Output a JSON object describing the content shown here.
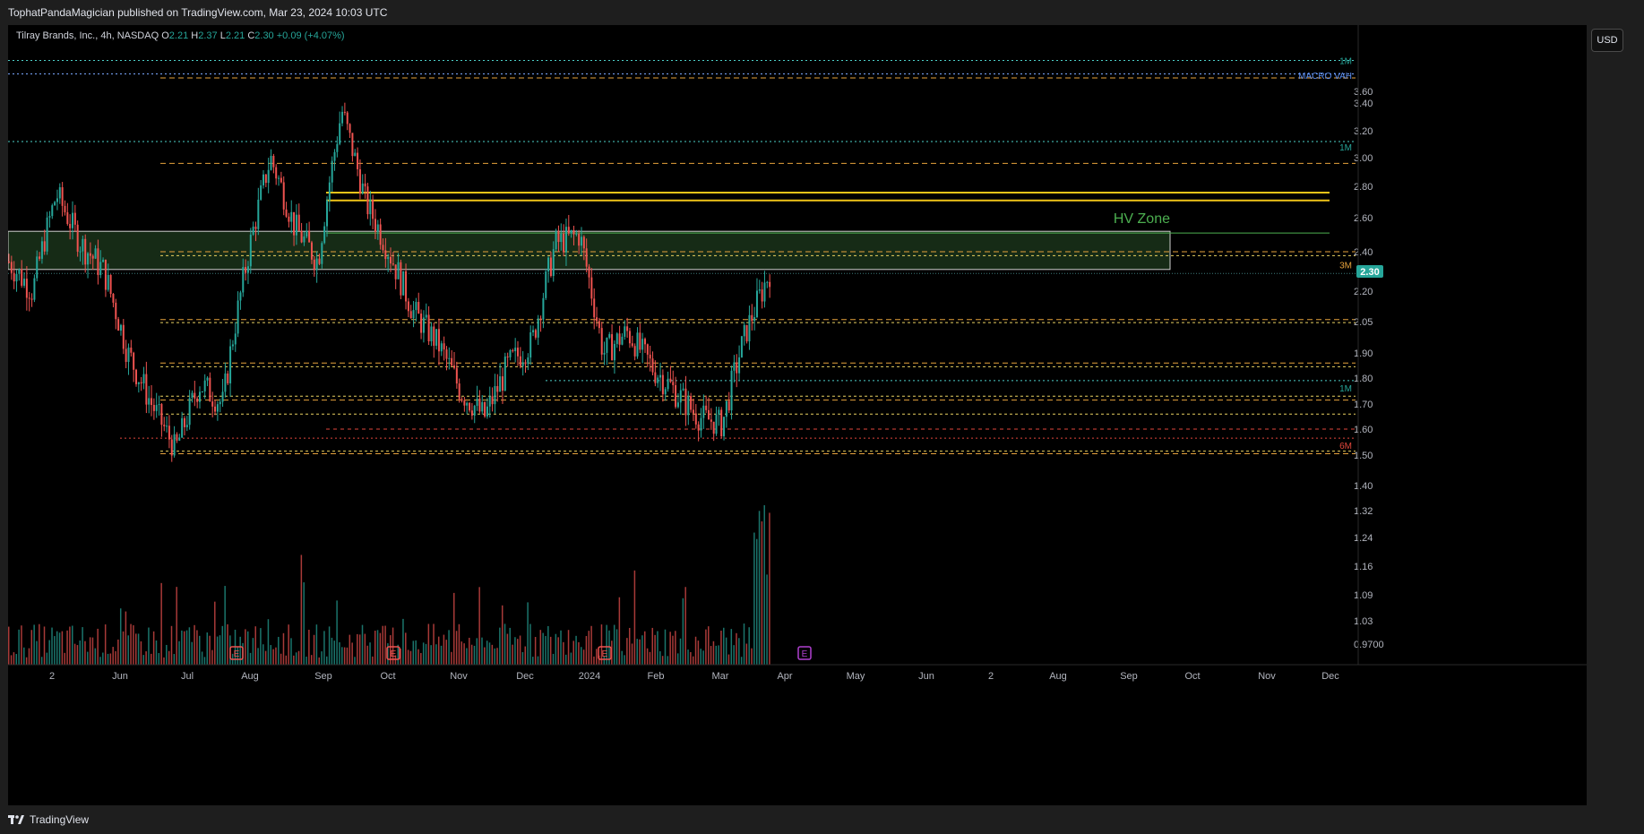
{
  "header": {
    "published_text": "TophatPandaMagician published on TradingView.com, Mar 23, 2024 10:03 UTC"
  },
  "legend": {
    "symbol_text": "Tilray Brands, Inc., 4h, NASDAQ",
    "o_label": "O",
    "o_value": "2.21",
    "h_label": "H",
    "h_value": "2.37",
    "l_label": "L",
    "l_value": "2.21",
    "c_label": "C",
    "c_value": "2.30",
    "change": "+0.09 (+4.07%)"
  },
  "currency_button": "USD",
  "footer": {
    "brand": "TradingView"
  },
  "colors": {
    "up": "#26a69a",
    "down": "#ef5350",
    "zone_fill": "#1d3a1d",
    "yellow": "#f0c419",
    "orange_dash": "#e6a23c",
    "cyan_dot": "#4dd0c9",
    "red_dot": "#e0463c",
    "hv_text": "#4caf50",
    "price_badge": "#26a69a"
  },
  "chart_data": {
    "type": "candlestick",
    "interval": "4h",
    "y_axis_ticks": [
      "3.60",
      "3.40",
      "3.20",
      "3.00",
      "2.80",
      "2.60",
      "2.40",
      "2.20",
      "2.05",
      "1.90",
      "1.80",
      "1.70",
      "1.60",
      "1.50",
      "1.40",
      "1.32",
      "1.24",
      "1.16",
      "1.09",
      "1.03",
      "0.9700"
    ],
    "y_scale": "log",
    "y_range": [
      0.95,
      3.9
    ],
    "x_axis_ticks": [
      "2",
      "Jun",
      "Jul",
      "Aug",
      "Sep",
      "Oct",
      "Nov",
      "Dec",
      "2024",
      "Feb",
      "Mar",
      "Apr",
      "May",
      "Jun",
      "2",
      "Aug",
      "Sep",
      "Oct",
      "Nov",
      "Dec"
    ],
    "last_price": "2.30",
    "level_labels": [
      "1M",
      "MACRO VAH",
      "1M",
      "3M",
      "1M",
      "6M"
    ],
    "annotation": "HV Zone",
    "earnings_markers": [
      "E",
      "E",
      "E",
      "E"
    ],
    "close_path": [
      [
        "May",
        2.35
      ],
      [
        "late May",
        2.2
      ],
      [
        "early Jun",
        2.75
      ],
      [
        "mid Jun",
        2.45
      ],
      [
        "late Jun",
        2.3
      ],
      [
        "Jun gap",
        1.9
      ],
      [
        "late Jun",
        1.7
      ],
      [
        "early Jul",
        1.52
      ],
      [
        "mid Jul",
        1.78
      ],
      [
        "late Jul",
        1.7
      ],
      [
        "early Aug",
        2.35
      ],
      [
        "Aug",
        3.0
      ],
      [
        "mid Aug",
        2.55
      ],
      [
        "late Aug",
        2.35
      ],
      [
        "Sep",
        3.35
      ],
      [
        "mid Sep",
        2.7
      ],
      [
        "late Sep",
        2.4
      ],
      [
        "Oct",
        2.1
      ],
      [
        "mid Oct",
        1.95
      ],
      [
        "Nov",
        1.75
      ],
      [
        "mid Nov",
        1.65
      ],
      [
        "Dec",
        1.85
      ],
      [
        "mid Dec",
        1.95
      ],
      [
        "late Dec",
        2.45
      ],
      [
        "early Jan",
        2.5
      ],
      [
        "mid Jan",
        1.9
      ],
      [
        "late Jan",
        2.0
      ],
      [
        "Feb",
        1.85
      ],
      [
        "mid Feb",
        1.75
      ],
      [
        "Mar",
        1.65
      ],
      [
        "mid Mar",
        1.62
      ],
      [
        "late Mar",
        2.0
      ],
      [
        "Mar 22",
        2.3
      ]
    ]
  }
}
